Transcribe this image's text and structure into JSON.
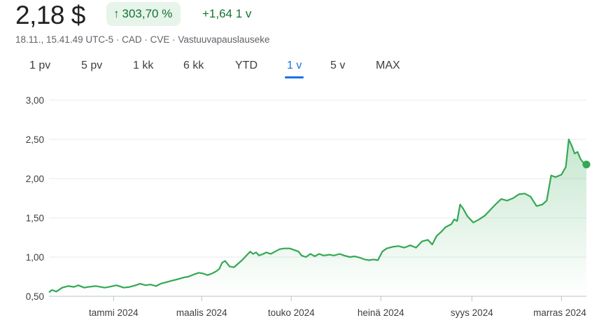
{
  "header": {
    "price": "2,18 $",
    "change_percent": "303,70 %",
    "change_absolute": "+1,64 1 v",
    "arrow_icon": "arrow-up-icon"
  },
  "meta": {
    "timestamp": "18.11., 15.41.49 UTC-5",
    "currency": "CAD",
    "exchange": "CVE",
    "disclaimer": "Vastuuvapauslauseke",
    "separator": " · "
  },
  "tabs": [
    {
      "label": "1 pv",
      "active": false
    },
    {
      "label": "5 pv",
      "active": false
    },
    {
      "label": "1 kk",
      "active": false
    },
    {
      "label": "6 kk",
      "active": false
    },
    {
      "label": "YTD",
      "active": false
    },
    {
      "label": "1 v",
      "active": true
    },
    {
      "label": "5 v",
      "active": false
    },
    {
      "label": "MAX",
      "active": false
    }
  ],
  "colors": {
    "line": "#34a853",
    "gain": "#137333",
    "gain_bg": "#e6f4ea",
    "grid": "#e8eaed",
    "active_tab": "#1a73e8"
  },
  "chart_data": {
    "type": "area",
    "title": "",
    "xlabel": "",
    "ylabel": "",
    "ylim": [
      0.5,
      3.0
    ],
    "y_ticks": [
      "3,00",
      "2,50",
      "2,00",
      "1,50",
      "1,00",
      "0,50"
    ],
    "y_tick_values": [
      3.0,
      2.5,
      2.0,
      1.5,
      1.0,
      0.5
    ],
    "x_ticks": [
      "tammi 2024",
      "maalis 2024",
      "touko 2024",
      "heinä 2024",
      "syys 2024",
      "marras 2024"
    ],
    "x_tick_dates": [
      "2024-01-01",
      "2024-03-01",
      "2024-05-01",
      "2024-07-01",
      "2024-09-01",
      "2024-11-01"
    ],
    "x_range": [
      "2023-11-18",
      "2024-11-18"
    ],
    "grid": true,
    "series": [
      {
        "points": [
          [
            "2023-11-18",
            0.55
          ],
          [
            "2023-11-20",
            0.58
          ],
          [
            "2023-11-23",
            0.56
          ],
          [
            "2023-11-27",
            0.61
          ],
          [
            "2023-12-01",
            0.63
          ],
          [
            "2023-12-05",
            0.62
          ],
          [
            "2023-12-08",
            0.64
          ],
          [
            "2023-12-12",
            0.61
          ],
          [
            "2023-12-15",
            0.62
          ],
          [
            "2023-12-20",
            0.63
          ],
          [
            "2023-12-26",
            0.61
          ],
          [
            "2023-12-29",
            0.62
          ],
          [
            "2024-01-03",
            0.64
          ],
          [
            "2024-01-08",
            0.61
          ],
          [
            "2024-01-12",
            0.62
          ],
          [
            "2024-01-16",
            0.64
          ],
          [
            "2024-01-19",
            0.66
          ],
          [
            "2024-01-23",
            0.64
          ],
          [
            "2024-01-26",
            0.65
          ],
          [
            "2024-01-30",
            0.63
          ],
          [
            "2024-02-02",
            0.66
          ],
          [
            "2024-02-06",
            0.68
          ],
          [
            "2024-02-10",
            0.7
          ],
          [
            "2024-02-14",
            0.72
          ],
          [
            "2024-02-18",
            0.74
          ],
          [
            "2024-02-21",
            0.75
          ],
          [
            "2024-02-25",
            0.78
          ],
          [
            "2024-02-28",
            0.8
          ],
          [
            "2024-03-02",
            0.79
          ],
          [
            "2024-03-05",
            0.77
          ],
          [
            "2024-03-08",
            0.79
          ],
          [
            "2024-03-11",
            0.82
          ],
          [
            "2024-03-13",
            0.85
          ],
          [
            "2024-03-15",
            0.93
          ],
          [
            "2024-03-17",
            0.95
          ],
          [
            "2024-03-20",
            0.88
          ],
          [
            "2024-03-23",
            0.87
          ],
          [
            "2024-03-26",
            0.92
          ],
          [
            "2024-03-29",
            0.97
          ],
          [
            "2024-04-01",
            1.03
          ],
          [
            "2024-04-03",
            1.07
          ],
          [
            "2024-04-05",
            1.04
          ],
          [
            "2024-04-07",
            1.06
          ],
          [
            "2024-04-09",
            1.02
          ],
          [
            "2024-04-12",
            1.04
          ],
          [
            "2024-04-14",
            1.06
          ],
          [
            "2024-04-17",
            1.04
          ],
          [
            "2024-04-20",
            1.07
          ],
          [
            "2024-04-23",
            1.1
          ],
          [
            "2024-04-26",
            1.11
          ],
          [
            "2024-04-30",
            1.11
          ],
          [
            "2024-05-03",
            1.09
          ],
          [
            "2024-05-06",
            1.07
          ],
          [
            "2024-05-08",
            1.02
          ],
          [
            "2024-05-11",
            1.0
          ],
          [
            "2024-05-14",
            1.04
          ],
          [
            "2024-05-17",
            1.01
          ],
          [
            "2024-05-20",
            1.04
          ],
          [
            "2024-05-23",
            1.02
          ],
          [
            "2024-05-27",
            1.03
          ],
          [
            "2024-05-30",
            1.02
          ],
          [
            "2024-06-03",
            1.04
          ],
          [
            "2024-06-06",
            1.02
          ],
          [
            "2024-06-10",
            1.0
          ],
          [
            "2024-06-13",
            1.01
          ],
          [
            "2024-06-17",
            0.99
          ],
          [
            "2024-06-20",
            0.97
          ],
          [
            "2024-06-23",
            0.96
          ],
          [
            "2024-06-26",
            0.97
          ],
          [
            "2024-06-29",
            0.96
          ],
          [
            "2024-07-02",
            1.07
          ],
          [
            "2024-07-05",
            1.11
          ],
          [
            "2024-07-09",
            1.13
          ],
          [
            "2024-07-13",
            1.14
          ],
          [
            "2024-07-17",
            1.12
          ],
          [
            "2024-07-21",
            1.15
          ],
          [
            "2024-07-25",
            1.12
          ],
          [
            "2024-07-29",
            1.2
          ],
          [
            "2024-08-02",
            1.22
          ],
          [
            "2024-08-05",
            1.16
          ],
          [
            "2024-08-08",
            1.27
          ],
          [
            "2024-08-11",
            1.32
          ],
          [
            "2024-08-14",
            1.38
          ],
          [
            "2024-08-18",
            1.42
          ],
          [
            "2024-08-20",
            1.48
          ],
          [
            "2024-08-22",
            1.46
          ],
          [
            "2024-08-24",
            1.67
          ],
          [
            "2024-08-26",
            1.62
          ],
          [
            "2024-08-29",
            1.52
          ],
          [
            "2024-09-02",
            1.44
          ],
          [
            "2024-09-06",
            1.48
          ],
          [
            "2024-09-10",
            1.53
          ],
          [
            "2024-09-13",
            1.59
          ],
          [
            "2024-09-17",
            1.67
          ],
          [
            "2024-09-21",
            1.74
          ],
          [
            "2024-09-25",
            1.72
          ],
          [
            "2024-09-29",
            1.75
          ],
          [
            "2024-10-03",
            1.8
          ],
          [
            "2024-10-07",
            1.81
          ],
          [
            "2024-10-11",
            1.77
          ],
          [
            "2024-10-15",
            1.65
          ],
          [
            "2024-10-19",
            1.67
          ],
          [
            "2024-10-22",
            1.72
          ],
          [
            "2024-10-25",
            2.04
          ],
          [
            "2024-10-28",
            2.02
          ],
          [
            "2024-11-01",
            2.05
          ],
          [
            "2024-11-04",
            2.15
          ],
          [
            "2024-11-06",
            2.5
          ],
          [
            "2024-11-08",
            2.42
          ],
          [
            "2024-11-10",
            2.32
          ],
          [
            "2024-11-12",
            2.34
          ],
          [
            "2024-11-14",
            2.25
          ],
          [
            "2024-11-16",
            2.2
          ],
          [
            "2024-11-18",
            2.18
          ]
        ]
      }
    ]
  }
}
